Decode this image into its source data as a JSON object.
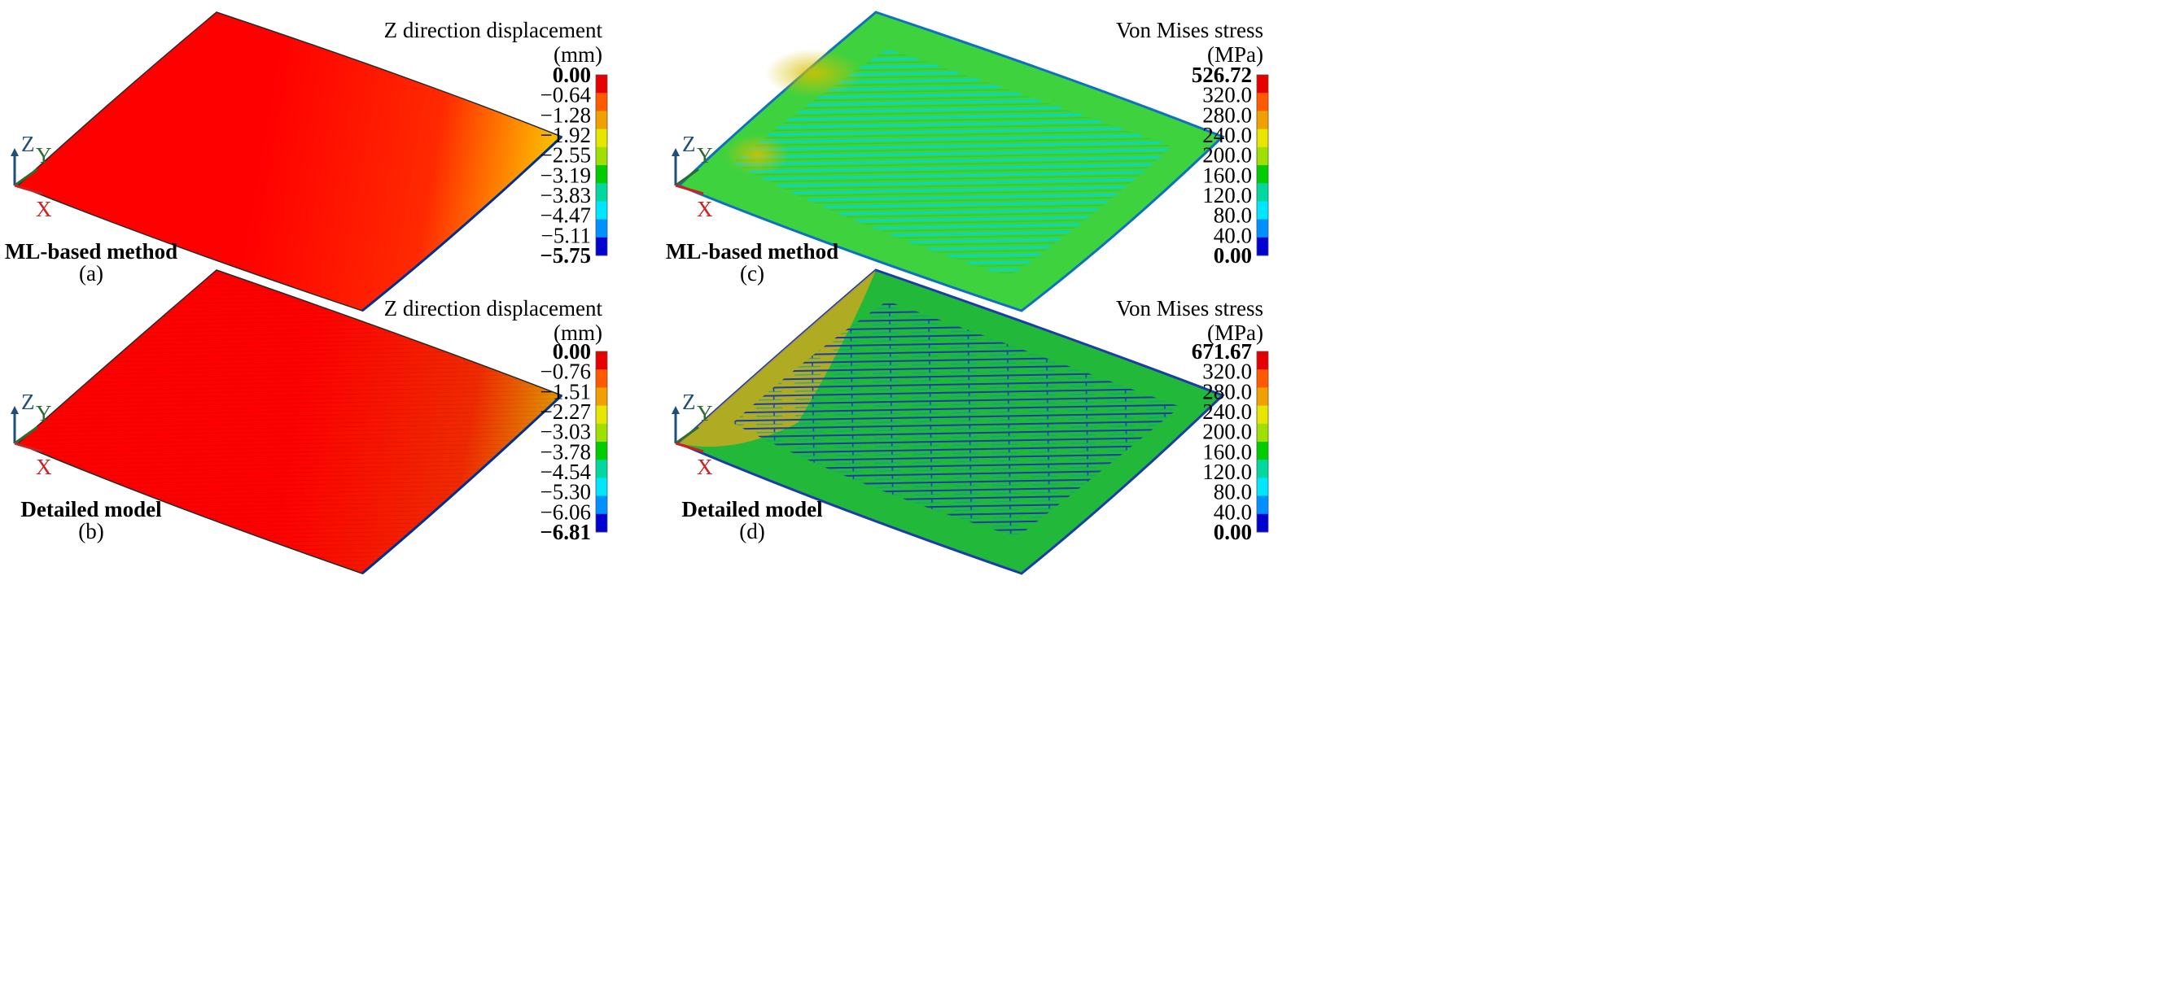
{
  "panels": [
    {
      "id": "a",
      "method": "ML-based method",
      "letter": "(a)",
      "field": "displacement",
      "legend_title": "Z direction displacement",
      "legend_unit": "(mm)",
      "legend_labels": [
        "0.00",
        "−0.64",
        "−1.28",
        "−1.92",
        "−2.55",
        "−3.19",
        "−3.83",
        "−4.47",
        "−5.11",
        "−5.75"
      ],
      "min_value": -5.75,
      "max_value": 0.0
    },
    {
      "id": "b",
      "method": "Detailed model",
      "letter": "(b)",
      "field": "displacement",
      "legend_title": "Z direction displacement",
      "legend_unit": "(mm)",
      "legend_labels": [
        "0.00",
        "−0.76",
        "−1.51",
        "−2.27",
        "−3.03",
        "−3.78",
        "−4.54",
        "−5.30",
        "−6.06",
        "−6.81"
      ],
      "min_value": -6.81,
      "max_value": 0.0
    },
    {
      "id": "c",
      "method": "ML-based method",
      "letter": "(c)",
      "field": "stress",
      "legend_title": "Von Mises stress",
      "legend_unit": "(MPa)",
      "legend_labels": [
        "526.72",
        "320.0",
        "280.0",
        "240.0",
        "200.0",
        "160.0",
        "120.0",
        "80.0",
        "40.0",
        "0.00"
      ],
      "min_value": 0.0,
      "max_value": 526.72
    },
    {
      "id": "d",
      "method": "Detailed model",
      "letter": "(d)",
      "field": "stress",
      "legend_title": "Von Mises stress",
      "legend_unit": "(MPa)",
      "legend_labels": [
        "671.67",
        "320.0",
        "280.0",
        "240.0",
        "200.0",
        "160.0",
        "120.0",
        "80.0",
        "40.0",
        "0.00"
      ],
      "min_value": 0.0,
      "max_value": 671.67
    }
  ],
  "axes": {
    "z": "Z",
    "y": "Y",
    "x": "X"
  },
  "colors": {
    "legend_bands": [
      "#e60000",
      "#ff5a00",
      "#f0a000",
      "#e6e600",
      "#9fe000",
      "#00cc00",
      "#00d8a0",
      "#00e6ff",
      "#0090ff",
      "#0000d0"
    ],
    "axis_z": "#1f4e79",
    "axis_y": "#2e6b2e",
    "axis_x": "#d02020",
    "edge": "#1060b0"
  }
}
